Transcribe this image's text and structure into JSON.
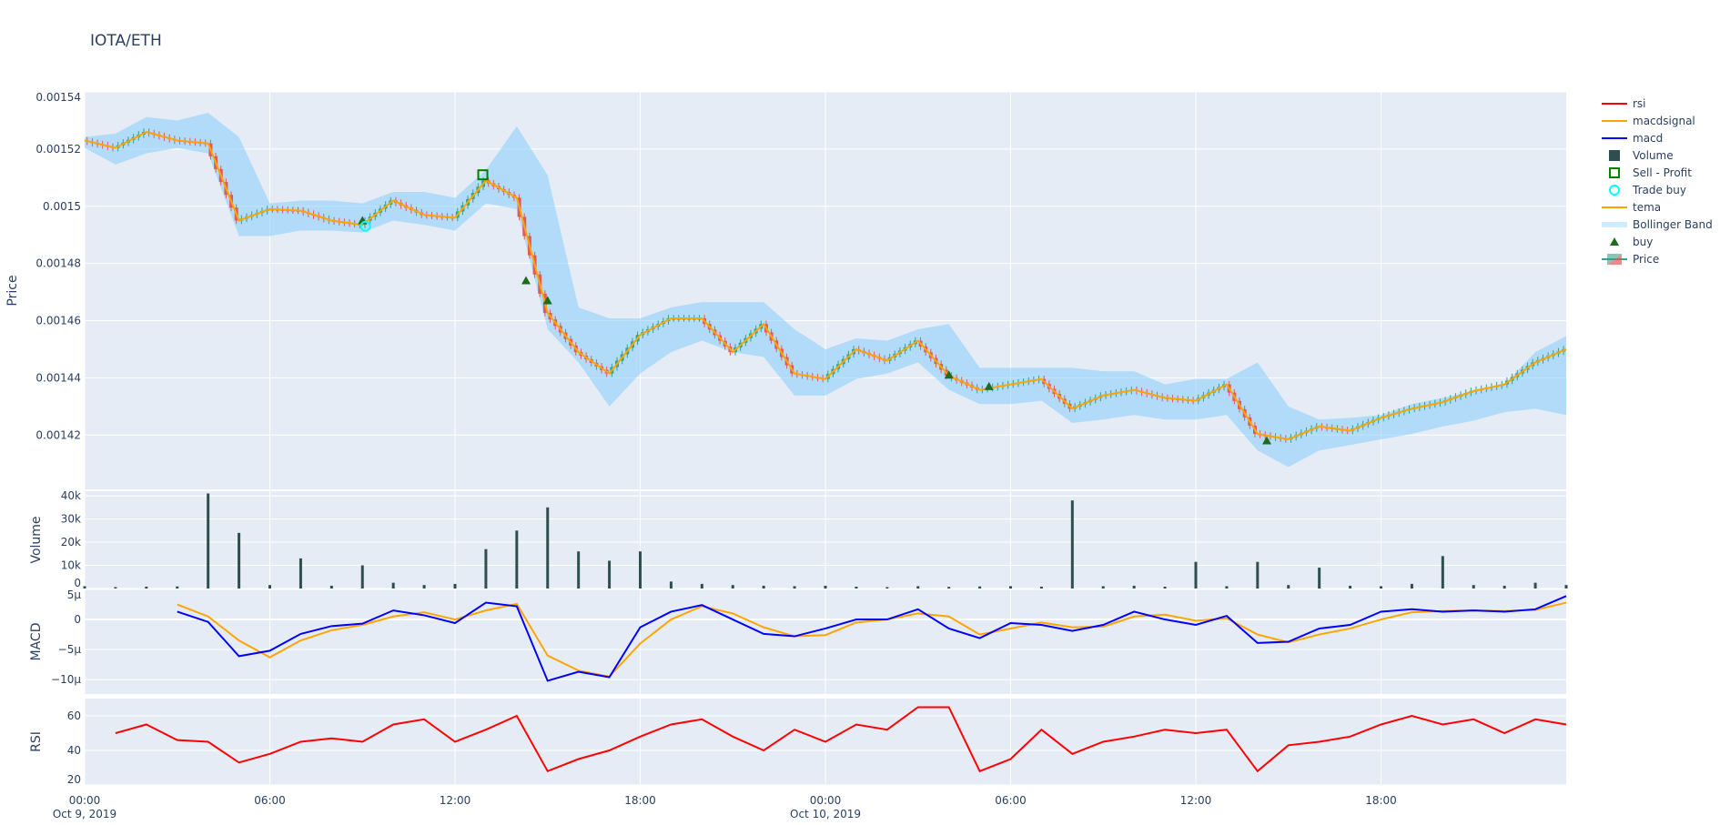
{
  "title": "IOTA/ETH",
  "colors": {
    "plot_bg": "#e5ecf6",
    "grid": "#ffffff",
    "increasing": "#2ca58d",
    "decreasing": "#e05a5a",
    "tema": "#ffa500",
    "bollinger": "#87cefa",
    "volume": "#2f4f4f",
    "macd": "#0000ff",
    "macdsignal": "#ffa500",
    "rsi": "#ff0000",
    "buy": "#1e6b1e",
    "trade_buy": "#00ffff",
    "sell_profit": "#008000"
  },
  "legend": [
    {
      "label": "rsi",
      "symbol": "line",
      "color": "#ff0000"
    },
    {
      "label": "macdsignal",
      "symbol": "line",
      "color": "#ffa500"
    },
    {
      "label": "macd",
      "symbol": "line",
      "color": "#0000ff"
    },
    {
      "label": "Volume",
      "symbol": "square-filled",
      "color": "#2f4f4f"
    },
    {
      "label": "Sell - Profit",
      "symbol": "square-open",
      "color": "#008000"
    },
    {
      "label": "Trade buy",
      "symbol": "circle-open",
      "color": "#00ffff"
    },
    {
      "label": "tema",
      "symbol": "line",
      "color": "#ffa500"
    },
    {
      "label": "Bollinger Band",
      "symbol": "band",
      "color": "#87cefa"
    },
    {
      "label": "buy",
      "symbol": "triangle-up",
      "color": "#1e6b1e"
    },
    {
      "label": "Price",
      "symbol": "candlestick",
      "color": "#2ca58d"
    }
  ],
  "chart_data": {
    "type": "candlestick",
    "x_axis": {
      "type": "date",
      "range": [
        "2019-10-09 00:00",
        "2019-10-11 00:00"
      ],
      "ticks": [
        {
          "label": "00:00",
          "sub": "Oct 9, 2019",
          "time": "2019-10-09 00:00"
        },
        {
          "label": "06:00",
          "sub": "",
          "time": "2019-10-09 06:00"
        },
        {
          "label": "12:00",
          "sub": "",
          "time": "2019-10-09 12:00"
        },
        {
          "label": "18:00",
          "sub": "",
          "time": "2019-10-09 18:00"
        },
        {
          "label": "00:00",
          "sub": "Oct 10, 2019",
          "time": "2019-10-10 00:00"
        },
        {
          "label": "06:00",
          "sub": "",
          "time": "2019-10-10 06:00"
        },
        {
          "label": "12:00",
          "sub": "",
          "time": "2019-10-10 12:00"
        },
        {
          "label": "18:00",
          "sub": "",
          "time": "2019-10-10 18:00"
        }
      ]
    },
    "time": [
      "2019-10-09 00:00",
      "2019-10-09 01:00",
      "2019-10-09 02:00",
      "2019-10-09 03:00",
      "2019-10-09 04:00",
      "2019-10-09 05:00",
      "2019-10-09 06:00",
      "2019-10-09 07:00",
      "2019-10-09 08:00",
      "2019-10-09 09:00",
      "2019-10-09 10:00",
      "2019-10-09 11:00",
      "2019-10-09 12:00",
      "2019-10-09 13:00",
      "2019-10-09 14:00",
      "2019-10-09 15:00",
      "2019-10-09 16:00",
      "2019-10-09 17:00",
      "2019-10-09 18:00",
      "2019-10-09 19:00",
      "2019-10-09 20:00",
      "2019-10-09 21:00",
      "2019-10-09 22:00",
      "2019-10-09 23:00",
      "2019-10-10 00:00",
      "2019-10-10 01:00",
      "2019-10-10 02:00",
      "2019-10-10 03:00",
      "2019-10-10 04:00",
      "2019-10-10 05:00",
      "2019-10-10 06:00",
      "2019-10-10 07:00",
      "2019-10-10 08:00",
      "2019-10-10 09:00",
      "2019-10-10 10:00",
      "2019-10-10 11:00",
      "2019-10-10 12:00",
      "2019-10-10 13:00",
      "2019-10-10 14:00",
      "2019-10-10 15:00",
      "2019-10-10 16:00",
      "2019-10-10 17:00",
      "2019-10-10 18:00",
      "2019-10-10 19:00",
      "2019-10-10 20:00",
      "2019-10-10 21:00",
      "2019-10-10 22:00",
      "2019-10-10 23:00",
      "2019-10-11 00:00"
    ],
    "panels": {
      "price": {
        "ylabel": "Price",
        "ylim": [
          0.001401,
          0.00154
        ],
        "ticks": [
          {
            "v": 0.00142,
            "label": "0.00142"
          },
          {
            "v": 0.00144,
            "label": "0.00144"
          },
          {
            "v": 0.00146,
            "label": "0.00146"
          },
          {
            "v": 0.00148,
            "label": "0.00148"
          },
          {
            "v": 0.0015,
            "label": "0.0015"
          },
          {
            "v": 0.00152,
            "label": "0.00152"
          },
          {
            "v": 0.00154,
            "label": "0.00154"
          }
        ],
        "close": [
          0.001523,
          0.0015204,
          0.001526,
          0.001523,
          0.001522,
          0.001495,
          0.001499,
          0.0014985,
          0.001495,
          0.0014935,
          0.001502,
          0.001497,
          0.001496,
          0.001509,
          0.001503,
          0.0014627,
          0.001449,
          0.0014415,
          0.001455,
          0.0014608,
          0.0014608,
          0.001449,
          0.0014588,
          0.0014415,
          0.0014396,
          0.00145,
          0.001446,
          0.001453,
          0.0014408,
          0.0014358,
          0.0014377,
          0.0014396,
          0.0014292,
          0.0014338,
          0.0014358,
          0.001433,
          0.001432,
          0.0014377,
          0.0014204,
          0.0014185,
          0.001423,
          0.0014215,
          0.001426,
          0.0014292,
          0.0014315,
          0.0014354,
          0.0014377,
          0.0014454,
          0.00145
        ],
        "bb_upper": [
          0.0015242,
          0.0015254,
          0.0015312,
          0.00153,
          0.0015327,
          0.0015242,
          0.001501,
          0.001502,
          0.001502,
          0.001501,
          0.001505,
          0.001505,
          0.001503,
          0.0015127,
          0.001528,
          0.0015108,
          0.0014646,
          0.0014608,
          0.0014608,
          0.0014646,
          0.0014665,
          0.0014665,
          0.0014665,
          0.001457,
          0.00145,
          0.0014538,
          0.001453,
          0.001457,
          0.0014588,
          0.0014435,
          0.0014435,
          0.0014435,
          0.0014435,
          0.0014423,
          0.0014423,
          0.0014377,
          0.0014396,
          0.0014396,
          0.0014454,
          0.00143,
          0.0014254,
          0.001426,
          0.001427,
          0.0014308,
          0.001433,
          0.0014354,
          0.0014377,
          0.001449,
          0.0014546
        ],
        "bb_lower": [
          0.0015204,
          0.0015146,
          0.0015185,
          0.0015204,
          0.0015185,
          0.0014896,
          0.0014896,
          0.0014915,
          0.0014915,
          0.0014908,
          0.001495,
          0.0014935,
          0.0014915,
          0.001501,
          0.001499,
          0.001457,
          0.0014454,
          0.00143,
          0.0014415,
          0.001449,
          0.001453,
          0.001449,
          0.0014473,
          0.0014338,
          0.0014338,
          0.0014396,
          0.0014415,
          0.0014454,
          0.0014358,
          0.0014308,
          0.0014308,
          0.001432,
          0.0014242,
          0.0014254,
          0.001427,
          0.0014254,
          0.0014254,
          0.001427,
          0.0014146,
          0.0014088,
          0.0014146,
          0.0014165,
          0.0014185,
          0.0014204,
          0.001423,
          0.001425,
          0.001428,
          0.0014292,
          0.001427
        ],
        "buy_signals": [
          {
            "time": "2019-10-09 09:00",
            "price": 0.001495
          },
          {
            "time": "2019-10-09 14:18",
            "price": 0.001474
          },
          {
            "time": "2019-10-09 15:00",
            "price": 0.001467
          },
          {
            "time": "2019-10-10 04:00",
            "price": 0.001441
          },
          {
            "time": "2019-10-10 05:18",
            "price": 0.001437
          },
          {
            "time": "2019-10-10 14:18",
            "price": 0.001418
          }
        ],
        "trade_buys": [
          {
            "time": "2019-10-09 09:06",
            "price": 0.001493
          }
        ],
        "sell_profit": [
          {
            "time": "2019-10-09 12:54",
            "price": 0.001511
          }
        ]
      },
      "volume": {
        "ylabel": "Volume",
        "ylim": [
          0,
          42000
        ],
        "ticks": [
          {
            "v": 0,
            "label": "0"
          },
          {
            "v": 10000,
            "label": "10k"
          },
          {
            "v": 20000,
            "label": "20k"
          },
          {
            "v": 30000,
            "label": "30k"
          },
          {
            "v": 40000,
            "label": "40k"
          }
        ],
        "values": [
          1000,
          600,
          800,
          900,
          41000,
          24000,
          1500,
          13000,
          1200,
          10000,
          2500,
          1500,
          2000,
          17000,
          25000,
          35000,
          16000,
          12000,
          16000,
          3000,
          2000,
          1500,
          1200,
          1000,
          1200,
          800,
          600,
          1000,
          700,
          900,
          1000,
          800,
          38000,
          1000,
          1200,
          800,
          11500,
          1000,
          11500,
          1500,
          9000,
          1200,
          1000,
          2000,
          14000,
          1500,
          1200,
          2500,
          1500
        ]
      },
      "macd": {
        "ylabel": "MACD",
        "ylim": [
          -1.24e-05,
          5e-06
        ],
        "ticks": [
          {
            "v": 5e-06,
            "label": "5μ"
          },
          {
            "v": 0,
            "label": "0"
          },
          {
            "v": -5e-06,
            "label": "−5μ"
          },
          {
            "v": -1e-05,
            "label": "−10μ"
          }
        ],
        "macd": [
          null,
          null,
          null,
          1.3e-06,
          -4e-07,
          -6.1e-06,
          -5.2e-06,
          -2.4e-06,
          -1.1e-06,
          -7e-07,
          1.5e-06,
          7e-07,
          -6e-07,
          2.8e-06,
          2.2e-06,
          -1.02e-05,
          -8.7e-06,
          -9.6e-06,
          -1.3e-06,
          1.3e-06,
          2.4e-06,
          0,
          -2.4e-06,
          -2.8e-06,
          -1.5e-06,
          0,
          0,
          1.7e-06,
          -1.5e-06,
          -3.1e-06,
          -6e-07,
          -9e-07,
          -1.9e-06,
          -9e-07,
          1.3e-06,
          0,
          -9e-07,
          6e-07,
          -3.9e-06,
          -3.7e-06,
          -1.5e-06,
          -9e-07,
          1.3e-06,
          1.7e-06,
          1.3e-06,
          1.5e-06,
          1.3e-06,
          1.7e-06,
          3.9e-06
        ],
        "macdsignal": [
          null,
          null,
          null,
          2.5e-06,
          5e-07,
          -3.5e-06,
          -6.3e-06,
          -3.5e-06,
          -1.8e-06,
          -9e-07,
          5e-07,
          1.2e-06,
          0,
          1.5e-06,
          2.6e-06,
          -6e-06,
          -8.5e-06,
          -9.5e-06,
          -4e-06,
          0,
          2.2e-06,
          1e-06,
          -1.3e-06,
          -2.8e-06,
          -2.6e-06,
          -5e-07,
          0,
          1e-06,
          5e-07,
          -2.5e-06,
          -1.5e-06,
          -5e-07,
          -1.3e-06,
          -1.2e-06,
          5e-07,
          8e-07,
          -2e-07,
          2e-07,
          -2.5e-06,
          -3.8e-06,
          -2.5e-06,
          -1.5e-06,
          0,
          1.2e-06,
          1.4e-06,
          1.5e-06,
          1.4e-06,
          1.6e-06,
          2.8e-06
        ]
      },
      "rsi": {
        "ylabel": "RSI",
        "ylim": [
          20,
          70
        ],
        "ticks": [
          {
            "v": 20,
            "label": "20"
          },
          {
            "v": 40,
            "label": "40"
          },
          {
            "v": 60,
            "label": "60"
          }
        ],
        "values": [
          null,
          50,
          55,
          46,
          45,
          33,
          38,
          45,
          47,
          45,
          55,
          58,
          45,
          52,
          60,
          28,
          35,
          40,
          48,
          55,
          58,
          48,
          40,
          52,
          45,
          55,
          52,
          65,
          65,
          28,
          35,
          52,
          38,
          45,
          48,
          52,
          50,
          52,
          28,
          43,
          45,
          48,
          55,
          60,
          55,
          58,
          50,
          58,
          55
        ]
      }
    }
  }
}
